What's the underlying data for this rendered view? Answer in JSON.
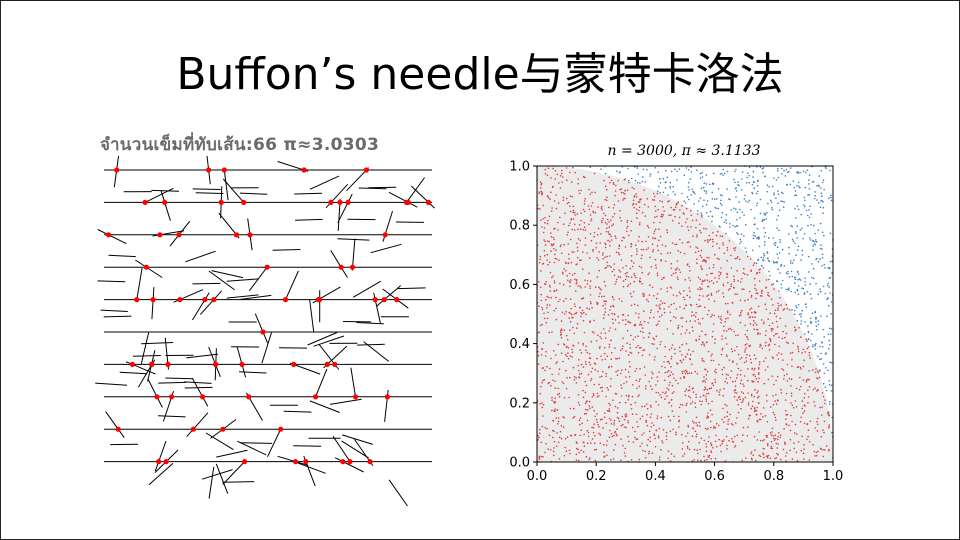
{
  "slide": {
    "title": "Buffon’s needle与蒙特卡洛法"
  },
  "left_panel": {
    "caption": "จำนวนเข็มที่ทับเส้น:66 π≈3.0303",
    "hits": 66,
    "pi_estimate": "3.0303",
    "num_lines": 10,
    "needle_color": "#000000",
    "hit_marker_color": "#ff0000"
  },
  "chart_data": {
    "type": "scatter",
    "title": "n = 3000, π ≈ 3.1133",
    "n": 3000,
    "pi_estimate": 3.1133,
    "xlim": [
      0.0,
      1.0
    ],
    "ylim": [
      0.0,
      1.0
    ],
    "x_ticks": [
      "0.0",
      "0.2",
      "0.4",
      "0.6",
      "0.8",
      "1.0"
    ],
    "y_ticks": [
      "0.0",
      "0.2",
      "0.4",
      "0.6",
      "0.8",
      "1.0"
    ],
    "quarter_circle_fill": "#ebebeb",
    "series": [
      {
        "color": "#e03b3b"
      },
      {
        "color": "#3a7fc4"
      }
    ],
    "grid": false
  }
}
